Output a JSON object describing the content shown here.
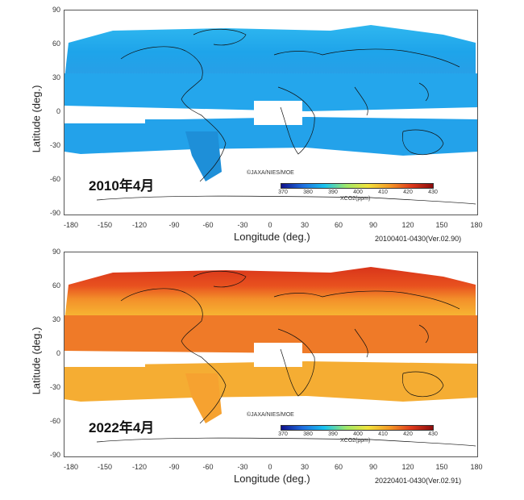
{
  "chart_data": [
    {
      "type": "heatmap",
      "xlabel": "Longitude (deg.)",
      "ylabel": "Latitude (deg.)",
      "xlim": [
        -180,
        180
      ],
      "ylim": [
        -90,
        90
      ],
      "x_ticks": [
        "-180",
        "-150",
        "-120",
        "-90",
        "-60",
        "-30",
        "0",
        "30",
        "60",
        "90",
        "120",
        "150",
        "180"
      ],
      "y_ticks": [
        "90",
        "60",
        "30",
        "0",
        "-30",
        "-60",
        "-90"
      ],
      "period_label": "2010年4月",
      "version_stamp": "20100401-0430(Ver.02.90)",
      "credit": "©JAXA/NIES/MOE",
      "colorbar": {
        "title": "XCO2(ppm)",
        "ticks": [
          "370",
          "380",
          "390",
          "400",
          "410",
          "420",
          "430"
        ],
        "range": [
          370,
          430
        ]
      },
      "dominant_xco2_ppm": 388
    },
    {
      "type": "heatmap",
      "xlabel": "Longitude (deg.)",
      "ylabel": "Latitude (deg.)",
      "xlim": [
        -180,
        180
      ],
      "ylim": [
        -90,
        90
      ],
      "x_ticks": [
        "-180",
        "-150",
        "-120",
        "-90",
        "-60",
        "-30",
        "0",
        "30",
        "60",
        "90",
        "120",
        "150",
        "180"
      ],
      "y_ticks": [
        "90",
        "60",
        "30",
        "0",
        "-30",
        "-60",
        "-90"
      ],
      "period_label": "2022年4月",
      "version_stamp": "20220401-0430(Ver.02.91)",
      "credit": "©JAXA/NIES/MOE",
      "colorbar": {
        "title": "XCO2(ppm)",
        "ticks": [
          "370",
          "380",
          "390",
          "400",
          "410",
          "420",
          "430"
        ],
        "range": [
          370,
          430
        ]
      },
      "dominant_xco2_ppm": 418
    }
  ]
}
